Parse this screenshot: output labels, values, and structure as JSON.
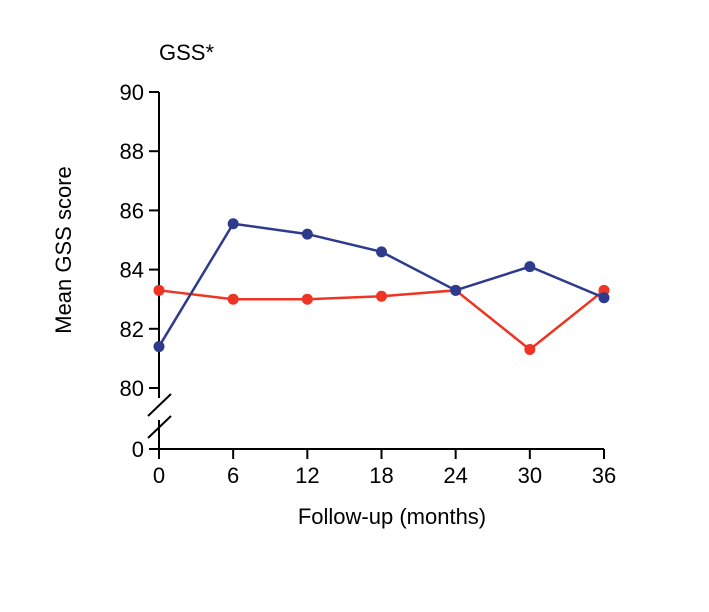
{
  "chart_data": {
    "type": "line",
    "title": "GSS*",
    "xlabel": "Follow-up (months)",
    "ylabel": "Mean GSS score",
    "x": [
      0,
      6,
      12,
      18,
      24,
      30,
      36
    ],
    "xlim": [
      0,
      36
    ],
    "ylim": [
      80,
      90
    ],
    "y_axis_break": true,
    "y_ticks": [
      "0",
      "80",
      "82",
      "84",
      "86",
      "88",
      "90"
    ],
    "x_ticks": [
      "0",
      "6",
      "12",
      "18",
      "24",
      "30",
      "36"
    ],
    "grid": false,
    "legend": "none",
    "series": [
      {
        "color": "#2e3a8c",
        "values": [
          81.4,
          85.55,
          85.2,
          84.6,
          83.3,
          84.1,
          83.05
        ]
      },
      {
        "color": "#ee3524",
        "values": [
          83.3,
          83.0,
          83.0,
          83.1,
          83.3,
          81.3,
          83.3
        ]
      }
    ]
  }
}
